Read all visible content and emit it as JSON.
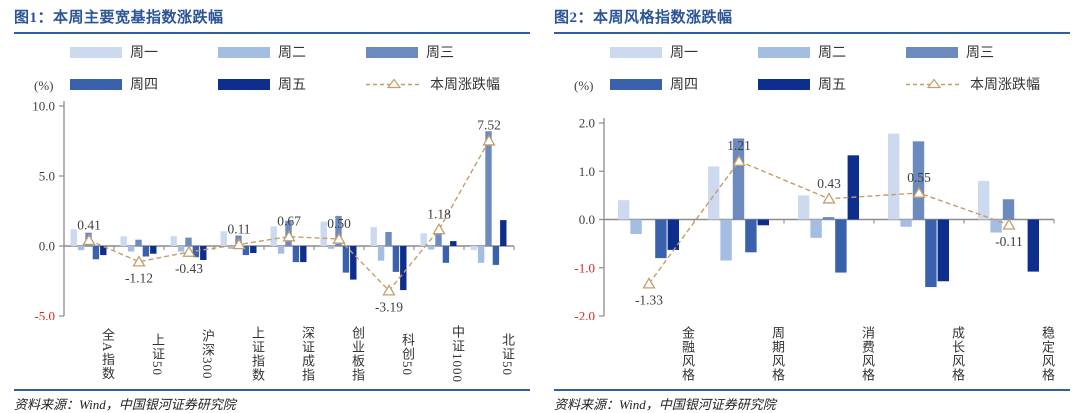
{
  "panels": [
    {
      "title": "图1：本周主要宽基指数涨跌幅",
      "unit_label": "(%)",
      "source": "资料来源：Wind，中国银河证券研究院"
    },
    {
      "title": "图2：本周风格指数涨跌幅",
      "unit_label": "(%)",
      "source": "资料来源：Wind，中国银河证券研究院"
    }
  ],
  "colors": {
    "series": [
      "#cdd9ee",
      "#a6bde2",
      "#6d8abf",
      "#3a62ac",
      "#0d2e8c"
    ],
    "line": "#c59d6a",
    "title": "#2b5597",
    "rule": "#2e5f9e",
    "negative_tick": "#e0261c",
    "text": "#3f3f3f",
    "axis": "#8c8c8c"
  },
  "chart_data": [
    {
      "type": "bar",
      "title": "图1：本周主要宽基指数涨跌幅",
      "ylabel": "(%)",
      "categories": [
        "全A指数",
        "上证50",
        "沪深300",
        "上证指数",
        "深证成指",
        "创业板指",
        "科创50",
        "中证1000",
        "北证50"
      ],
      "series": [
        {
          "name": "周一",
          "values": [
            1.2,
            0.7,
            0.7,
            1.05,
            1.4,
            1.75,
            1.35,
            0.9,
            -0.3
          ]
        },
        {
          "name": "周二",
          "values": [
            -0.3,
            -0.4,
            -0.4,
            -0.2,
            -0.55,
            -0.2,
            -1.05,
            -0.25,
            -1.2
          ]
        },
        {
          "name": "周三",
          "values": [
            0.95,
            0.45,
            0.6,
            0.75,
            1.8,
            2.15,
            1.0,
            0.85,
            8.2
          ]
        },
        {
          "name": "周四",
          "values": [
            -0.95,
            -0.75,
            -0.8,
            -0.65,
            -1.15,
            -1.9,
            -1.85,
            -1.2,
            -1.35
          ]
        },
        {
          "name": "周五",
          "values": [
            -0.65,
            -0.55,
            -1.0,
            -0.5,
            -1.15,
            -2.4,
            -3.15,
            0.35,
            1.85
          ]
        }
      ],
      "line_series": {
        "name": "本周涨跌幅",
        "values": [
          0.41,
          -1.12,
          -0.43,
          0.11,
          0.67,
          0.5,
          -3.19,
          1.18,
          7.52
        ],
        "labels": [
          "0.41",
          "-1.12",
          "-0.43",
          "0.11",
          "0.67",
          "0.50",
          "-3.19",
          "1.18",
          "7.52"
        ]
      },
      "ylim": [
        -5,
        10
      ],
      "yticks": [
        10,
        5,
        0,
        -5
      ],
      "ytick_labels": [
        "10.0",
        "5.0",
        "0.0",
        "-5.0"
      ],
      "legend_position": "top",
      "grid": false
    },
    {
      "type": "bar",
      "title": "图2：本周风格指数涨跌幅",
      "ylabel": "(%)",
      "categories": [
        "金融风格",
        "周期风格",
        "消费风格",
        "成长风格",
        "稳定风格"
      ],
      "series": [
        {
          "name": "周一",
          "values": [
            0.4,
            1.1,
            0.5,
            1.78,
            0.8
          ]
        },
        {
          "name": "周二",
          "values": [
            -0.3,
            -0.85,
            -0.38,
            -0.15,
            -0.27
          ]
        },
        {
          "name": "周三",
          "values": [
            0.0,
            1.68,
            0.05,
            1.62,
            0.42
          ]
        },
        {
          "name": "周四",
          "values": [
            -0.8,
            -0.68,
            -1.1,
            -1.4,
            0.0
          ]
        },
        {
          "name": "周五",
          "values": [
            -0.63,
            -0.12,
            1.33,
            -1.28,
            -1.08
          ]
        }
      ],
      "line_series": {
        "name": "本周涨跌幅",
        "values": [
          -1.33,
          1.21,
          0.43,
          0.55,
          -0.11
        ],
        "labels": [
          "-1.33",
          "1.21",
          "0.43",
          "0.55",
          "-0.11"
        ]
      },
      "ylim": [
        -2,
        2
      ],
      "yticks": [
        2,
        1,
        0,
        -1,
        -2
      ],
      "ytick_labels": [
        "2.0",
        "1.0",
        "0.0",
        "-1.0",
        "-2.0"
      ],
      "legend_position": "top",
      "grid": false
    }
  ]
}
